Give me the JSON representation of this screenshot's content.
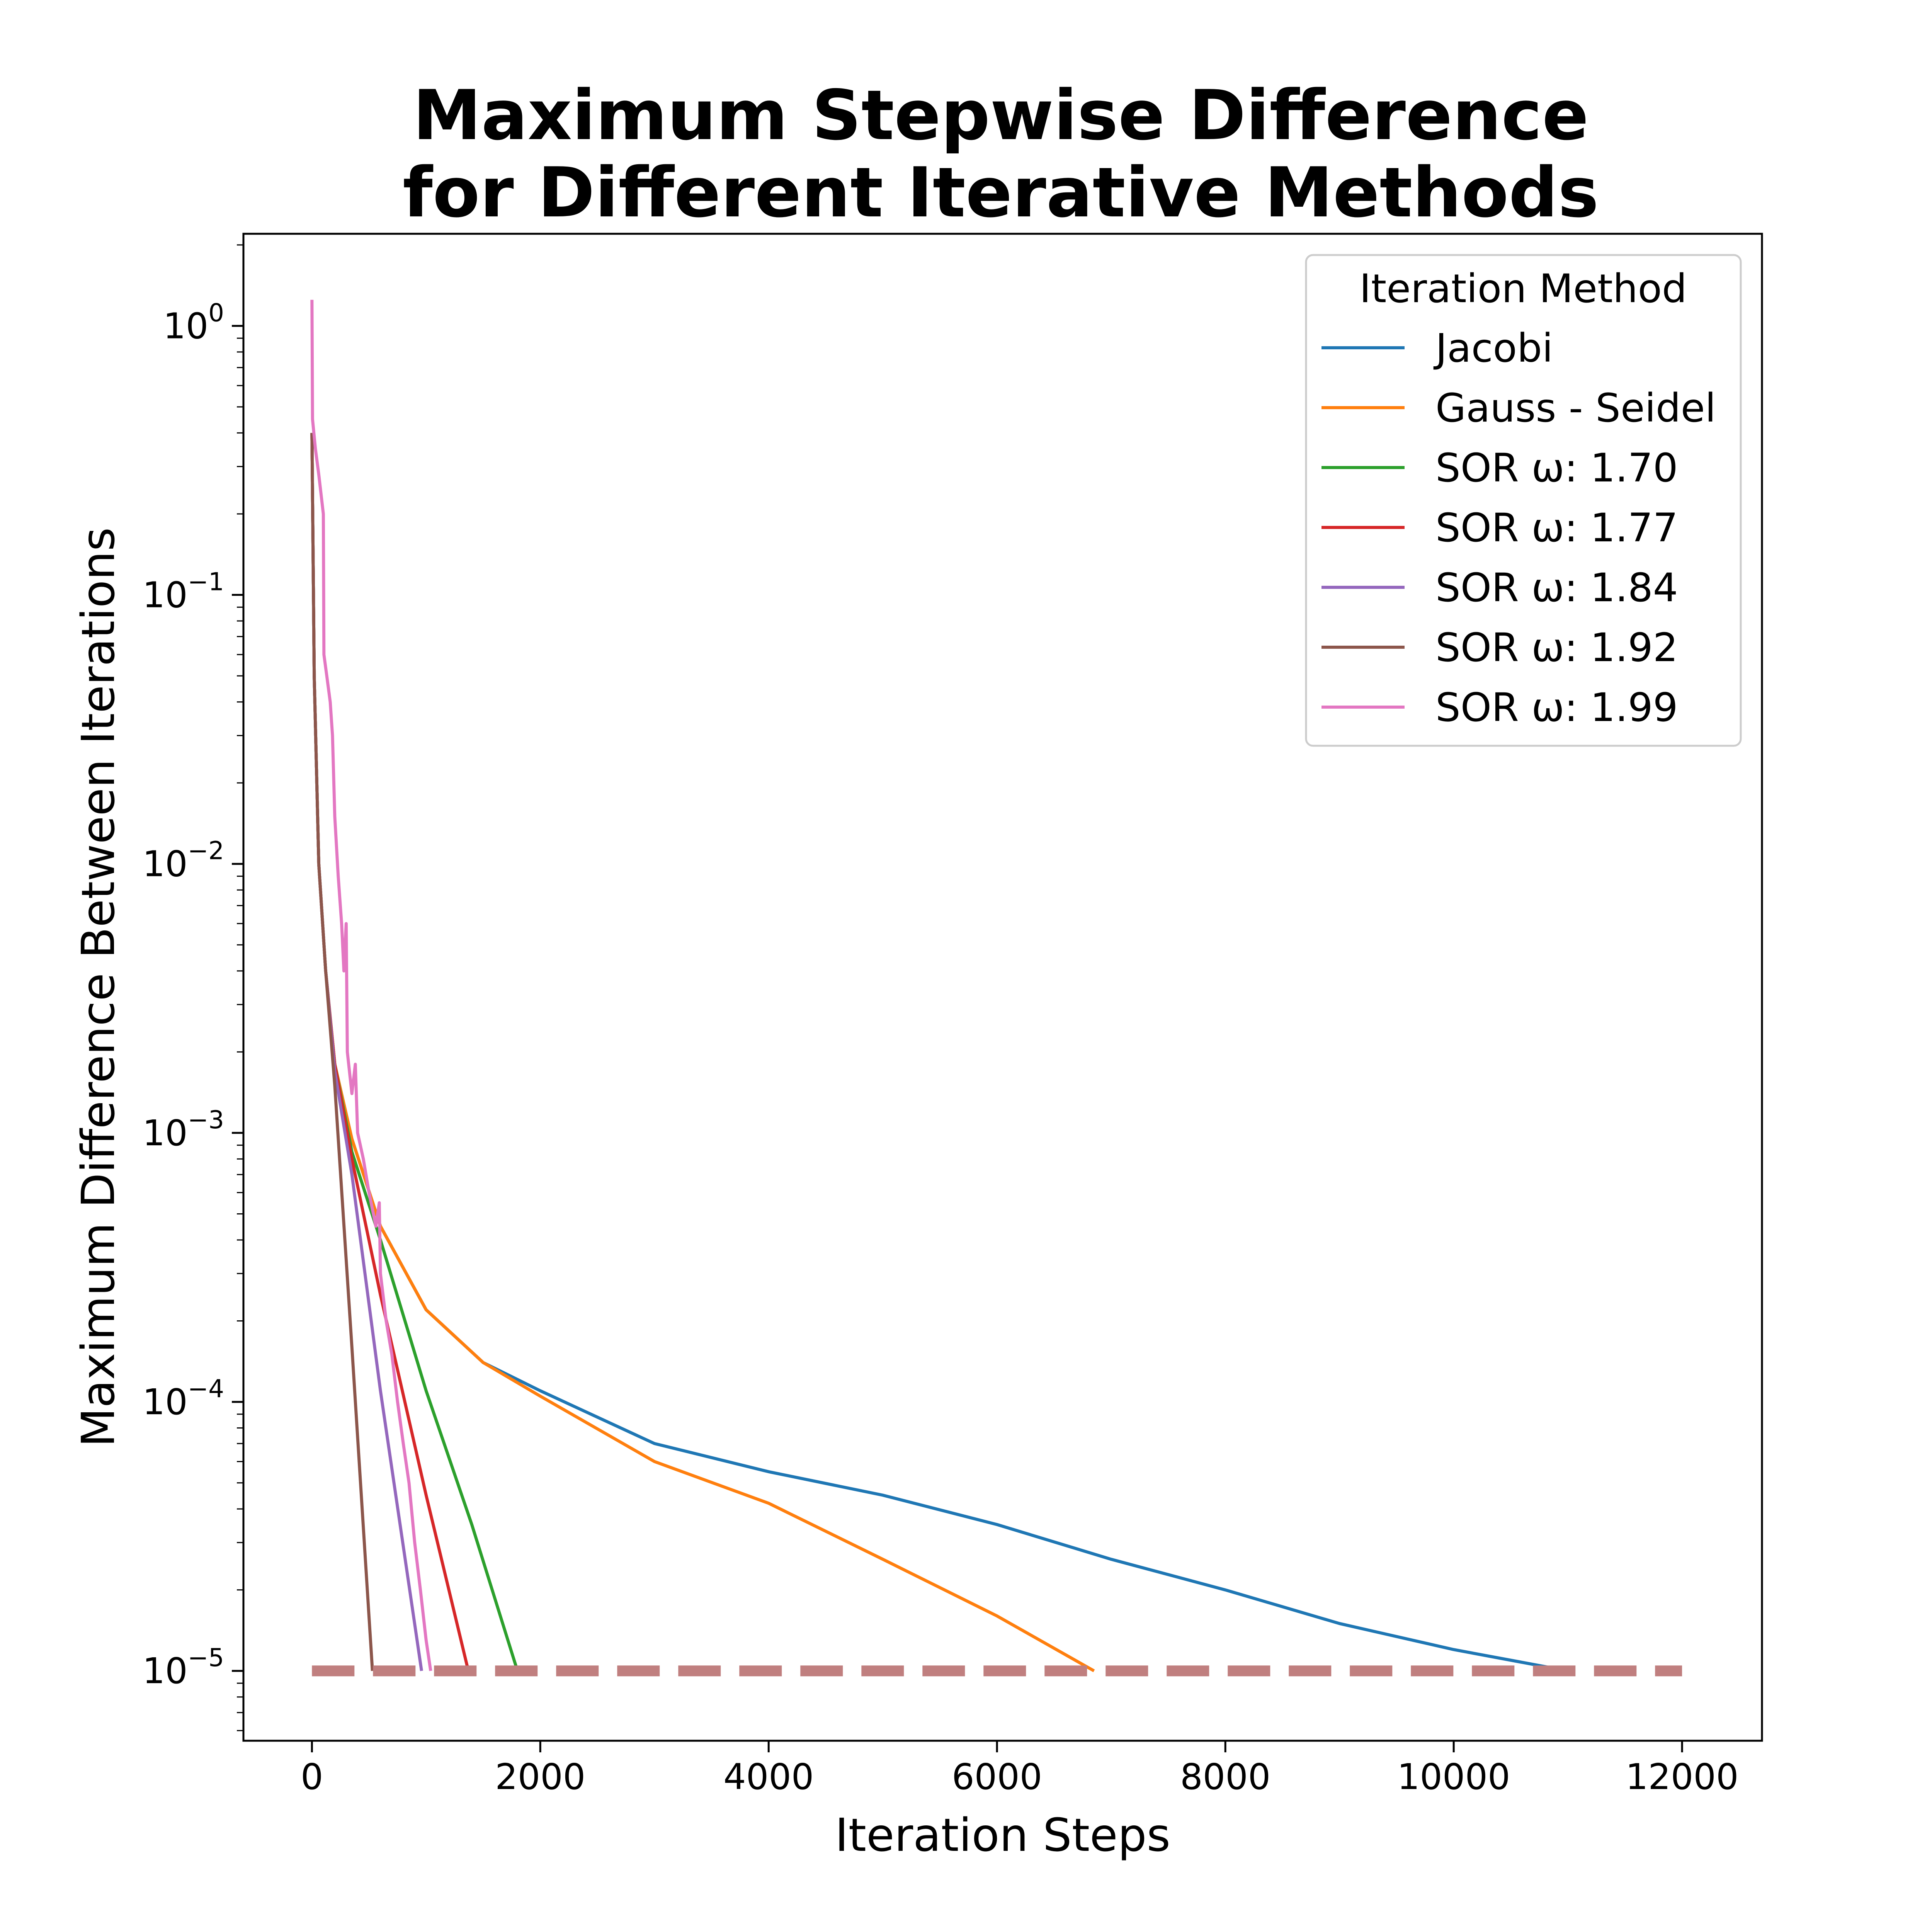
{
  "chart_data": {
    "type": "line",
    "title_lines": [
      "Maximum Stepwise Difference",
      "for Different Iterative Methods"
    ],
    "xlabel": "Iteration Steps",
    "ylabel": "Maximum Difference Between Iterations",
    "xscale": "linear",
    "yscale": "log",
    "xlim": [
      -600,
      12700
    ],
    "ylim": [
      5.5e-06,
      2.2
    ],
    "xticks": [
      0,
      2000,
      4000,
      6000,
      8000,
      10000,
      12000
    ],
    "xtick_labels": [
      "0",
      "2000",
      "4000",
      "6000",
      "8000",
      "10000",
      "12000"
    ],
    "yticks": [
      1,
      0.1,
      0.01,
      0.001,
      0.0001,
      1e-05
    ],
    "ytick_labels": [
      {
        "base": "10",
        "exp": "0"
      },
      {
        "base": "10",
        "exp": "−1"
      },
      {
        "base": "10",
        "exp": "−2"
      },
      {
        "base": "10",
        "exp": "−3"
      },
      {
        "base": "10",
        "exp": "−4"
      },
      {
        "base": "10",
        "exp": "−5"
      }
    ],
    "legend": {
      "title": "Iteration Method",
      "position": "top-right"
    },
    "threshold": {
      "y": 1e-05,
      "x_range": [
        0,
        12000
      ],
      "color": "#c07f7f",
      "style": "dashed"
    },
    "series": [
      {
        "name": "Jacobi",
        "color": "#1f77b4",
        "points": [
          [
            0,
            0.4
          ],
          [
            20,
            0.05
          ],
          [
            60,
            0.01
          ],
          [
            120,
            0.004
          ],
          [
            200,
            0.0018
          ],
          [
            350,
            0.00095
          ],
          [
            600,
            0.00045
          ],
          [
            1000,
            0.00022
          ],
          [
            1500,
            0.00014
          ],
          [
            2000,
            0.00011
          ],
          [
            3000,
            7e-05
          ],
          [
            4000,
            5.5e-05
          ],
          [
            5000,
            4.5e-05
          ],
          [
            6000,
            3.5e-05
          ],
          [
            7000,
            2.6e-05
          ],
          [
            8000,
            2e-05
          ],
          [
            9000,
            1.5e-05
          ],
          [
            10000,
            1.2e-05
          ],
          [
            11000,
            1e-05
          ]
        ]
      },
      {
        "name": "Gauss - Seidel",
        "color": "#ff7f0e",
        "points": [
          [
            0,
            0.4
          ],
          [
            20,
            0.05
          ],
          [
            60,
            0.01
          ],
          [
            120,
            0.004
          ],
          [
            200,
            0.0018
          ],
          [
            350,
            0.00095
          ],
          [
            600,
            0.00045
          ],
          [
            1000,
            0.00022
          ],
          [
            1500,
            0.00014
          ],
          [
            2000,
            0.000105
          ],
          [
            3000,
            6e-05
          ],
          [
            4000,
            4.2e-05
          ],
          [
            5000,
            2.6e-05
          ],
          [
            6000,
            1.6e-05
          ],
          [
            6850,
            1e-05
          ]
        ]
      },
      {
        "name": "SOR ω: 1.70",
        "color": "#2ca02c",
        "points": [
          [
            0,
            0.4
          ],
          [
            20,
            0.05
          ],
          [
            60,
            0.01
          ],
          [
            120,
            0.004
          ],
          [
            200,
            0.0018
          ],
          [
            350,
            0.00085
          ],
          [
            600,
            0.0004
          ],
          [
            1000,
            0.00011
          ],
          [
            1400,
            3.5e-05
          ],
          [
            1800,
            1e-05
          ]
        ]
      },
      {
        "name": "SOR ω: 1.77",
        "color": "#d62728",
        "points": [
          [
            0,
            0.4
          ],
          [
            20,
            0.05
          ],
          [
            60,
            0.01
          ],
          [
            120,
            0.004
          ],
          [
            200,
            0.0018
          ],
          [
            350,
            0.0008
          ],
          [
            600,
            0.00025
          ],
          [
            1000,
            4.5e-05
          ],
          [
            1370,
            1e-05
          ]
        ]
      },
      {
        "name": "SOR ω: 1.84",
        "color": "#9467bd",
        "points": [
          [
            0,
            0.4
          ],
          [
            20,
            0.05
          ],
          [
            60,
            0.01
          ],
          [
            120,
            0.004
          ],
          [
            200,
            0.0017
          ],
          [
            350,
            0.0007
          ],
          [
            600,
            0.00011
          ],
          [
            960,
            1e-05
          ]
        ]
      },
      {
        "name": "SOR ω: 1.92",
        "color": "#8c564b",
        "points": [
          [
            0,
            0.4
          ],
          [
            20,
            0.05
          ],
          [
            60,
            0.01
          ],
          [
            120,
            0.004
          ],
          [
            200,
            0.0015
          ],
          [
            350,
            0.00016
          ],
          [
            530,
            1e-05
          ]
        ]
      },
      {
        "name": "SOR ω: 1.99",
        "color": "#e377c2",
        "points": [
          [
            0,
            1.25
          ],
          [
            5,
            0.45
          ],
          [
            30,
            0.35
          ],
          [
            60,
            0.28
          ],
          [
            100,
            0.2
          ],
          [
            105,
            0.06
          ],
          [
            130,
            0.05
          ],
          [
            160,
            0.04
          ],
          [
            180,
            0.03
          ],
          [
            200,
            0.015
          ],
          [
            230,
            0.009
          ],
          [
            260,
            0.006
          ],
          [
            280,
            0.004
          ],
          [
            300,
            0.006
          ],
          [
            310,
            0.002
          ],
          [
            350,
            0.0014
          ],
          [
            380,
            0.0018
          ],
          [
            400,
            0.001
          ],
          [
            450,
            0.0008
          ],
          [
            500,
            0.0006
          ],
          [
            560,
            0.00045
          ],
          [
            590,
            0.00055
          ],
          [
            600,
            0.0003
          ],
          [
            650,
            0.0002
          ],
          [
            700,
            0.00015
          ],
          [
            750,
            0.0001
          ],
          [
            800,
            7e-05
          ],
          [
            850,
            5e-05
          ],
          [
            900,
            3e-05
          ],
          [
            950,
            2e-05
          ],
          [
            1000,
            1.3e-05
          ],
          [
            1040,
            1e-05
          ]
        ]
      }
    ]
  }
}
